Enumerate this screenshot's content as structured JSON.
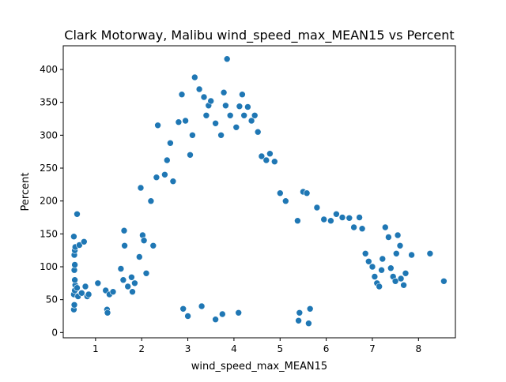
{
  "chart_data": {
    "type": "scatter",
    "title": "Clark Motorway, Malibu wind_speed_max_MEAN15 vs Percent",
    "xlabel": "wind_speed_max_MEAN15",
    "ylabel": "Percent",
    "xlim": [
      0.3,
      8.8
    ],
    "ylim": [
      -8,
      436
    ],
    "xticks": [
      1,
      2,
      3,
      4,
      5,
      6,
      7,
      8
    ],
    "yticks": [
      0,
      50,
      100,
      150,
      200,
      250,
      300,
      350,
      400
    ],
    "grid": false,
    "legend": "none",
    "marker_color": "#1f77b4",
    "points": [
      [
        0.53,
        35
      ],
      [
        0.54,
        42
      ],
      [
        0.53,
        58
      ],
      [
        0.55,
        64
      ],
      [
        0.56,
        72
      ],
      [
        0.55,
        80
      ],
      [
        0.54,
        95
      ],
      [
        0.55,
        103
      ],
      [
        0.54,
        118
      ],
      [
        0.55,
        125
      ],
      [
        0.53,
        146
      ],
      [
        0.56,
        130
      ],
      [
        0.6,
        180
      ],
      [
        0.6,
        68
      ],
      [
        0.62,
        55
      ],
      [
        0.65,
        133
      ],
      [
        0.75,
        138
      ],
      [
        0.7,
        60
      ],
      [
        0.78,
        70
      ],
      [
        0.82,
        55
      ],
      [
        0.85,
        58
      ],
      [
        1.05,
        75
      ],
      [
        1.22,
        64
      ],
      [
        1.25,
        35
      ],
      [
        1.26,
        30
      ],
      [
        1.3,
        58
      ],
      [
        1.38,
        62
      ],
      [
        1.55,
        97
      ],
      [
        1.6,
        80
      ],
      [
        1.62,
        155
      ],
      [
        1.63,
        132
      ],
      [
        1.7,
        70
      ],
      [
        1.78,
        84
      ],
      [
        1.8,
        62
      ],
      [
        1.85,
        75
      ],
      [
        1.95,
        115
      ],
      [
        1.98,
        220
      ],
      [
        2.02,
        148
      ],
      [
        2.05,
        140
      ],
      [
        2.1,
        90
      ],
      [
        2.2,
        200
      ],
      [
        2.25,
        132
      ],
      [
        2.32,
        236
      ],
      [
        2.35,
        315
      ],
      [
        2.5,
        240
      ],
      [
        2.55,
        262
      ],
      [
        2.62,
        288
      ],
      [
        2.68,
        230
      ],
      [
        2.8,
        320
      ],
      [
        2.87,
        362
      ],
      [
        2.95,
        322
      ],
      [
        3.05,
        270
      ],
      [
        3.1,
        300
      ],
      [
        3.15,
        388
      ],
      [
        3.25,
        370
      ],
      [
        3.35,
        358
      ],
      [
        3.4,
        330
      ],
      [
        3.45,
        345
      ],
      [
        3.5,
        352
      ],
      [
        3.6,
        318
      ],
      [
        3.72,
        300
      ],
      [
        3.78,
        365
      ],
      [
        3.82,
        345
      ],
      [
        3.85,
        416
      ],
      [
        3.92,
        330
      ],
      [
        4.05,
        312
      ],
      [
        4.12,
        344
      ],
      [
        4.18,
        362
      ],
      [
        4.22,
        330
      ],
      [
        4.3,
        343
      ],
      [
        4.38,
        322
      ],
      [
        4.45,
        330
      ],
      [
        4.52,
        305
      ],
      [
        4.6,
        268
      ],
      [
        4.7,
        262
      ],
      [
        4.78,
        272
      ],
      [
        4.88,
        260
      ],
      [
        5.0,
        212
      ],
      [
        5.12,
        200
      ],
      [
        5.38,
        170
      ],
      [
        5.5,
        214
      ],
      [
        5.58,
        212
      ],
      [
        5.8,
        190
      ],
      [
        5.95,
        172
      ],
      [
        6.1,
        170
      ],
      [
        6.22,
        180
      ],
      [
        6.35,
        175
      ],
      [
        6.5,
        174
      ],
      [
        6.6,
        160
      ],
      [
        6.72,
        175
      ],
      [
        6.78,
        158
      ],
      [
        6.85,
        120
      ],
      [
        6.92,
        108
      ],
      [
        7.0,
        100
      ],
      [
        7.05,
        85
      ],
      [
        7.1,
        75
      ],
      [
        7.15,
        70
      ],
      [
        7.2,
        95
      ],
      [
        7.22,
        112
      ],
      [
        7.28,
        160
      ],
      [
        7.35,
        145
      ],
      [
        7.4,
        98
      ],
      [
        7.45,
        85
      ],
      [
        7.5,
        78
      ],
      [
        7.52,
        120
      ],
      [
        7.55,
        148
      ],
      [
        7.6,
        132
      ],
      [
        7.62,
        82
      ],
      [
        7.68,
        72
      ],
      [
        7.72,
        90
      ],
      [
        7.85,
        118
      ],
      [
        8.25,
        120
      ],
      [
        8.55,
        78
      ],
      [
        3.0,
        25
      ],
      [
        3.6,
        20
      ],
      [
        3.75,
        28
      ],
      [
        4.1,
        30
      ],
      [
        5.4,
        18
      ],
      [
        5.42,
        30
      ],
      [
        5.62,
        14
      ],
      [
        5.65,
        36
      ],
      [
        2.9,
        36
      ],
      [
        3.3,
        40
      ]
    ]
  }
}
